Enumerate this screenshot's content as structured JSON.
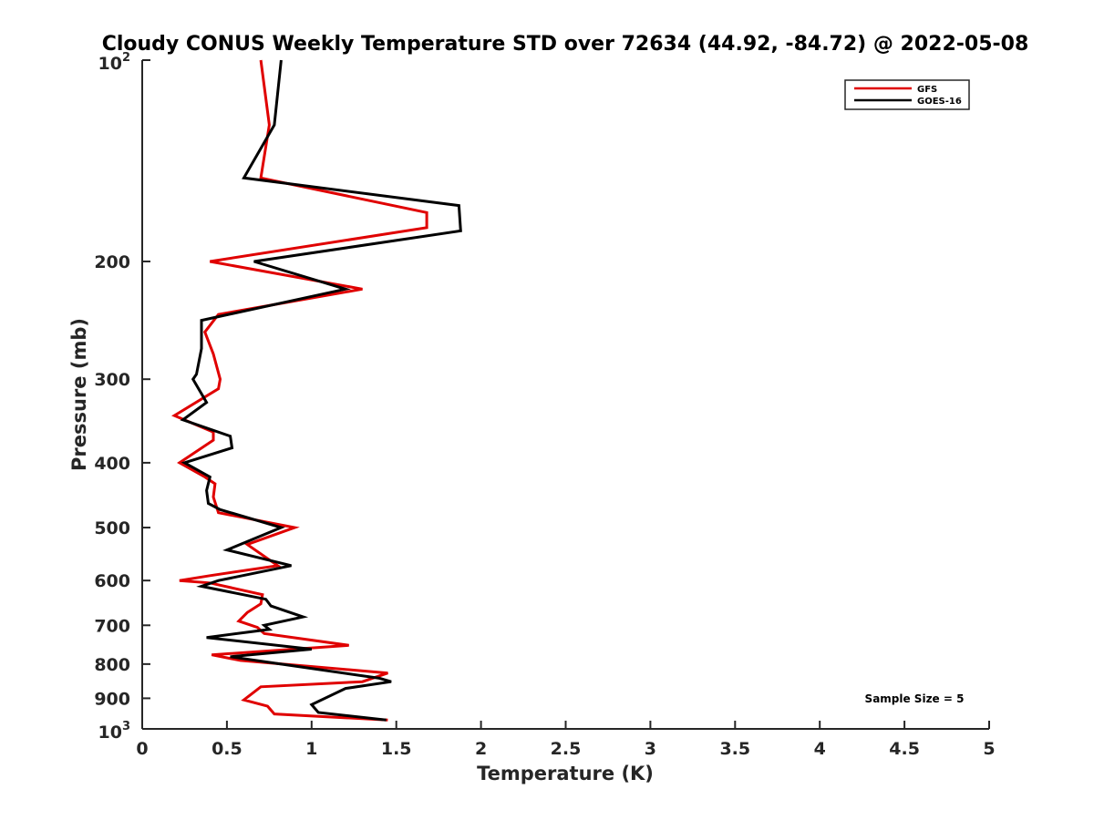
{
  "chart_data": {
    "type": "line",
    "title": "Cloudy CONUS Weekly Temperature STD over 72634 (44.92, -84.72) @ 2022-05-08",
    "xlabel": "Temperature (K)",
    "ylabel": "Pressure (mb)",
    "xlim": [
      0,
      5
    ],
    "ylim": [
      100,
      1000
    ],
    "yscale": "log",
    "yreversed": true,
    "grid": false,
    "legend_position": "top-right",
    "x_ticks": [
      0,
      0.5,
      1,
      1.5,
      2,
      2.5,
      3,
      3.5,
      4,
      4.5,
      5
    ],
    "x_tick_labels": [
      "0",
      "0.5",
      "1",
      "1.5",
      "2",
      "2.5",
      "3",
      "3.5",
      "4",
      "4.5",
      "5"
    ],
    "y_ticks": [
      200,
      300,
      400,
      500,
      600,
      700,
      800,
      900
    ],
    "y_tick_labels": [
      "200",
      "300",
      "400",
      "500",
      "600",
      "700",
      "800",
      "900"
    ],
    "y_tick_edge": {
      "top": {
        "base": "10",
        "exp": "2",
        "value": 100
      },
      "bottom": {
        "base": "10",
        "exp": "3",
        "value": 1000
      }
    },
    "annotation": "Sample Size = 5",
    "series": [
      {
        "name": "GFS",
        "color": "#e00000",
        "points": [
          [
            0.7,
            100
          ],
          [
            0.75,
            125
          ],
          [
            0.7,
            150
          ],
          [
            1.68,
            169
          ],
          [
            1.68,
            178
          ],
          [
            0.4,
            200
          ],
          [
            1.3,
            220
          ],
          [
            0.45,
            240
          ],
          [
            0.37,
            255
          ],
          [
            0.42,
            275
          ],
          [
            0.46,
            300
          ],
          [
            0.45,
            310
          ],
          [
            0.19,
            340
          ],
          [
            0.42,
            360
          ],
          [
            0.42,
            370
          ],
          [
            0.22,
            400
          ],
          [
            0.37,
            420
          ],
          [
            0.43,
            430
          ],
          [
            0.42,
            450
          ],
          [
            0.45,
            475
          ],
          [
            0.9,
            500
          ],
          [
            0.62,
            530
          ],
          [
            0.8,
            570
          ],
          [
            0.4,
            590
          ],
          [
            0.22,
            600
          ],
          [
            0.4,
            605
          ],
          [
            0.71,
            630
          ],
          [
            0.7,
            650
          ],
          [
            0.62,
            670
          ],
          [
            0.57,
            690
          ],
          [
            0.68,
            705
          ],
          [
            0.72,
            720
          ],
          [
            1.22,
            750
          ],
          [
            0.41,
            775
          ],
          [
            0.58,
            790
          ],
          [
            1.45,
            825
          ],
          [
            1.3,
            850
          ],
          [
            0.7,
            865
          ],
          [
            0.6,
            905
          ],
          [
            0.74,
            925
          ],
          [
            0.78,
            950
          ],
          [
            1.45,
            970
          ]
        ]
      },
      {
        "name": "GOES-16",
        "color": "#000000",
        "points": [
          [
            0.82,
            100
          ],
          [
            0.78,
            125
          ],
          [
            0.6,
            150
          ],
          [
            1.87,
            165
          ],
          [
            1.88,
            180
          ],
          [
            0.66,
            200
          ],
          [
            1.2,
            220
          ],
          [
            0.35,
            245
          ],
          [
            0.35,
            270
          ],
          [
            0.32,
            295
          ],
          [
            0.3,
            300
          ],
          [
            0.38,
            325
          ],
          [
            0.24,
            345
          ],
          [
            0.52,
            365
          ],
          [
            0.53,
            380
          ],
          [
            0.25,
            400
          ],
          [
            0.4,
            420
          ],
          [
            0.38,
            440
          ],
          [
            0.39,
            460
          ],
          [
            0.46,
            470
          ],
          [
            0.82,
            500
          ],
          [
            0.5,
            540
          ],
          [
            0.88,
            570
          ],
          [
            0.45,
            600
          ],
          [
            0.35,
            612
          ],
          [
            0.73,
            640
          ],
          [
            0.76,
            655
          ],
          [
            0.95,
            680
          ],
          [
            0.72,
            700
          ],
          [
            0.75,
            710
          ],
          [
            0.38,
            730
          ],
          [
            1.0,
            760
          ],
          [
            0.52,
            780
          ],
          [
            0.82,
            800
          ],
          [
            1.4,
            840
          ],
          [
            1.47,
            850
          ],
          [
            1.2,
            870
          ],
          [
            1.0,
            920
          ],
          [
            1.04,
            945
          ],
          [
            1.44,
            970
          ]
        ]
      }
    ]
  }
}
